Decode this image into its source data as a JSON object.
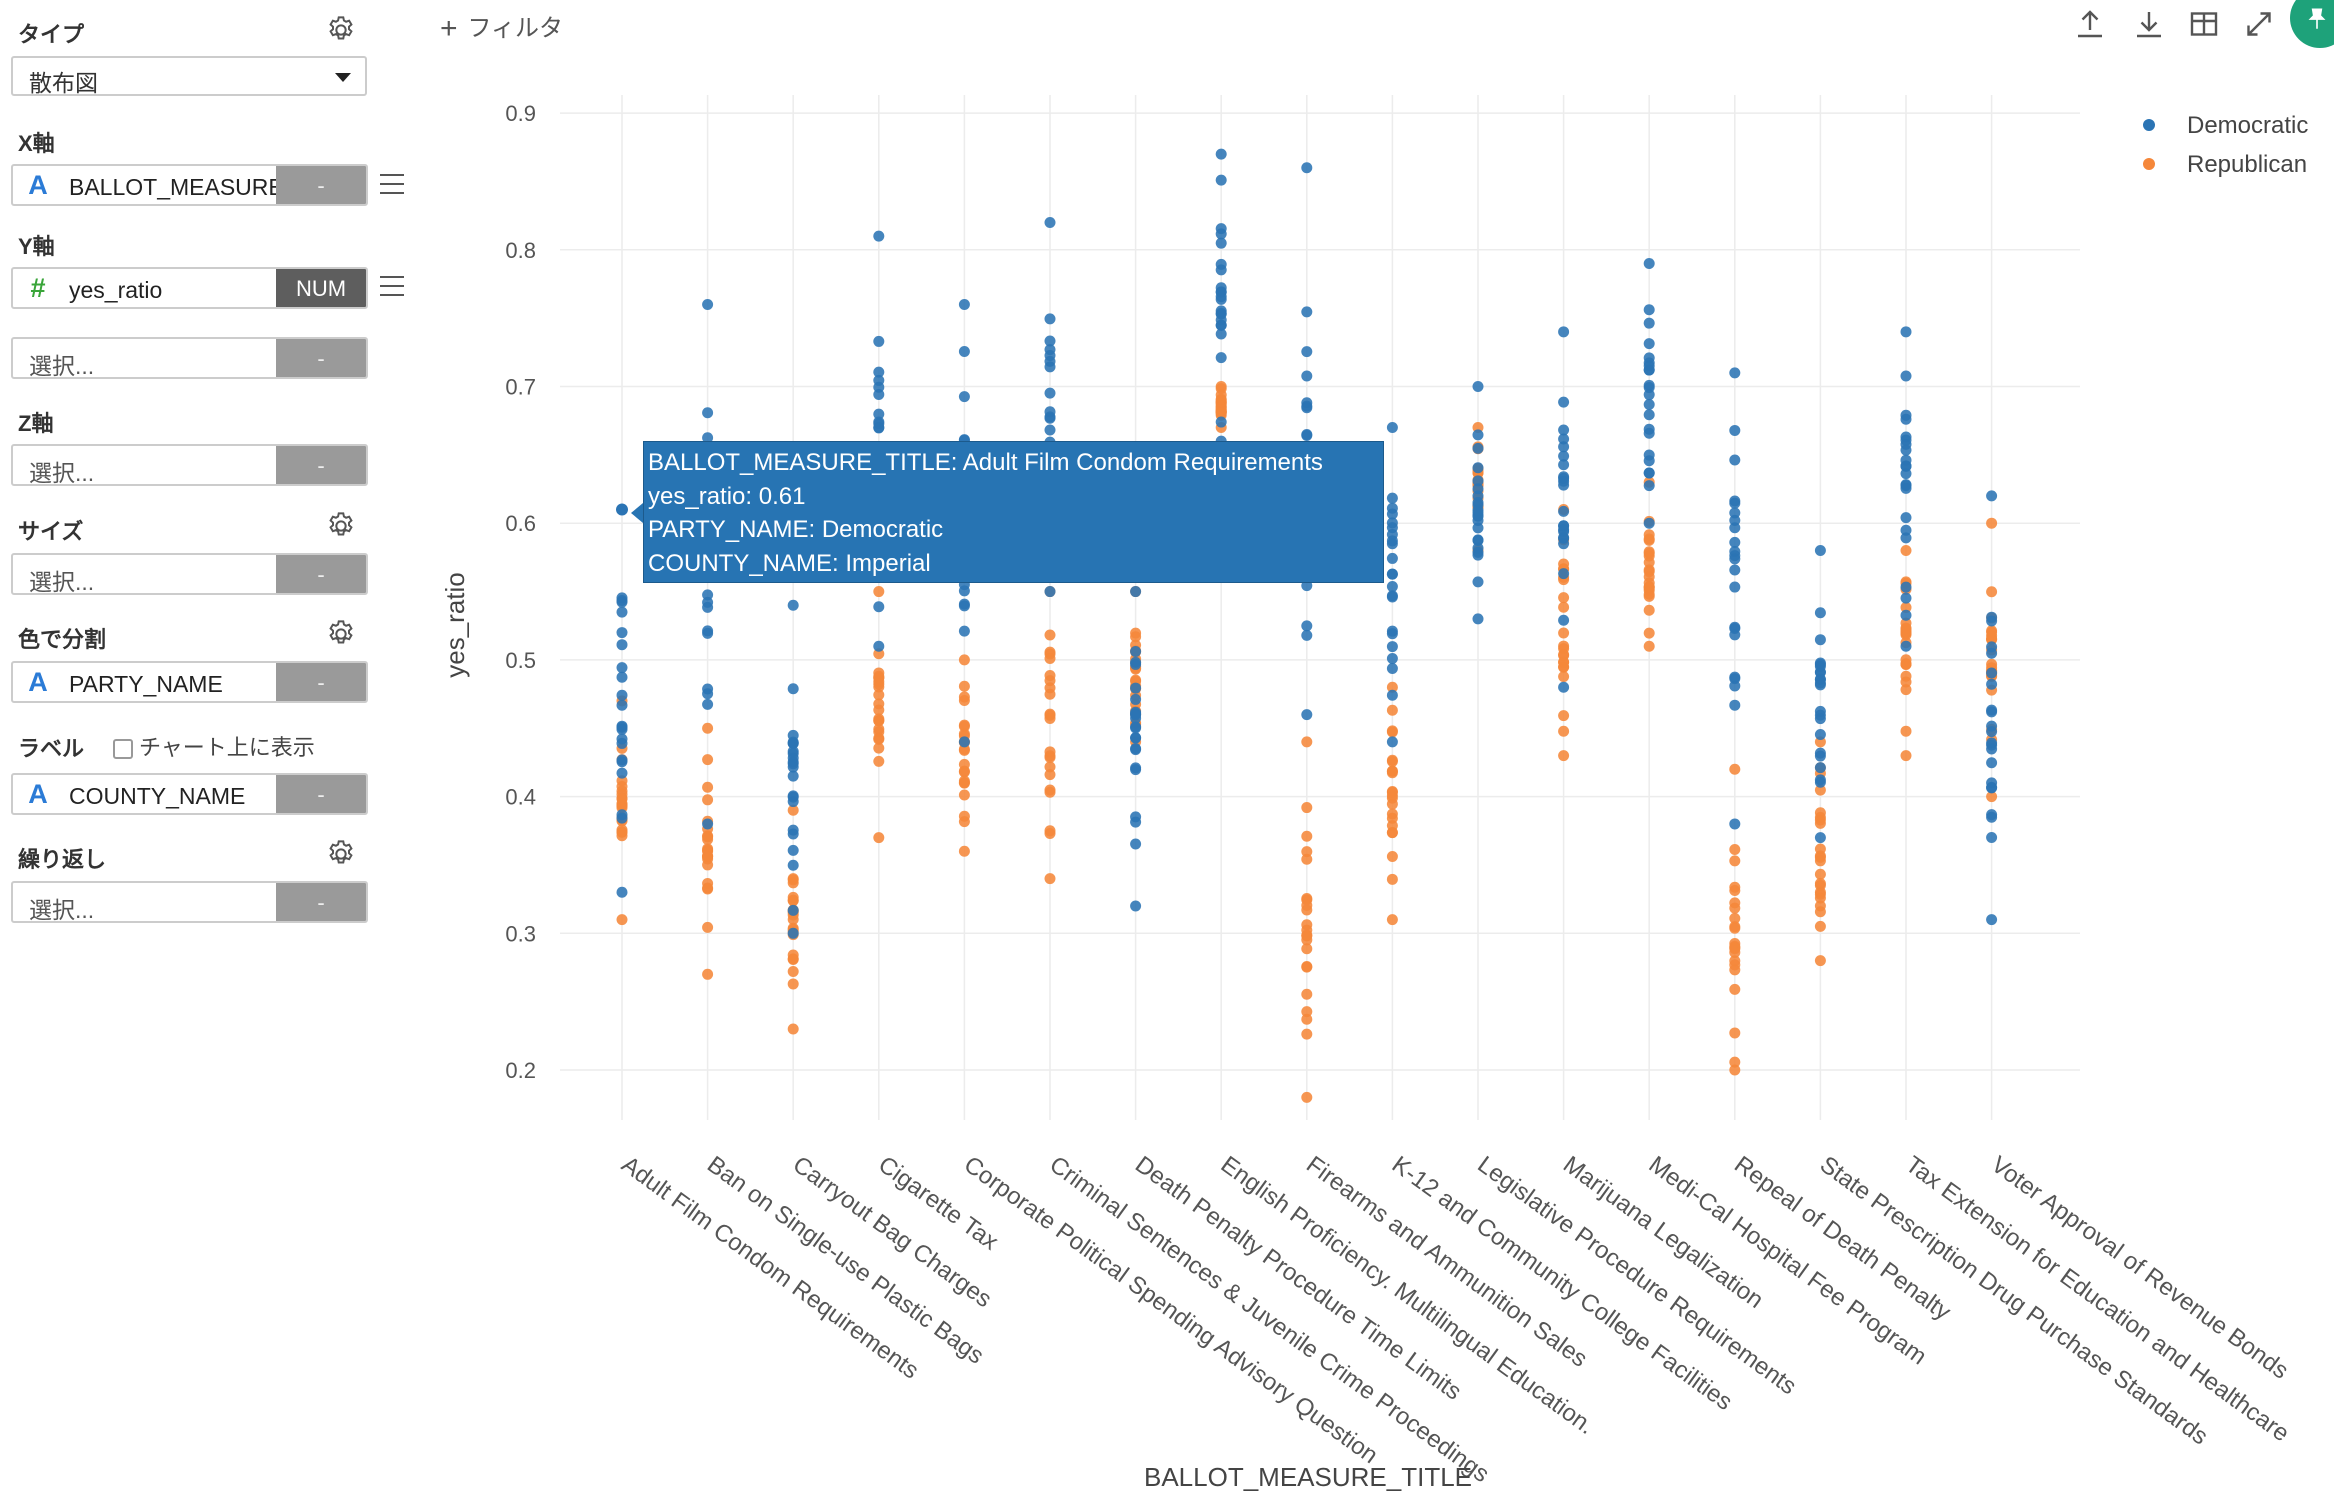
{
  "sidebar": {
    "type_label": "タイプ",
    "type_value": "散布図",
    "x_label": "X軸",
    "x_field": {
      "type_icon": "A",
      "name": "BALLOT_MEASURE_TITLE",
      "button": "-"
    },
    "y_label": "Y軸",
    "y_field": {
      "type_icon": "#",
      "name": "yes_ratio",
      "button": "NUM"
    },
    "y_extra": {
      "placeholder": "選択...",
      "button": "-"
    },
    "z_label": "Z軸",
    "z_field": {
      "placeholder": "選択...",
      "button": "-"
    },
    "size_label": "サイズ",
    "size_field": {
      "placeholder": "選択...",
      "button": "-"
    },
    "color_label": "色で分割",
    "color_field": {
      "type_icon": "A",
      "name": "PARTY_NAME",
      "button": "-"
    },
    "label_label": "ラベル",
    "label_checkbox_text": "チャート上に表示",
    "label_field": {
      "type_icon": "A",
      "name": "COUNTY_NAME",
      "button": "-"
    },
    "repeat_label": "繰り返し",
    "repeat_field": {
      "placeholder": "選択...",
      "button": "-"
    }
  },
  "toolbar": {
    "filter_plus": "+",
    "filter_label": "フィルタ",
    "icons": [
      "upload-icon",
      "download-icon",
      "table-icon",
      "expand-icon",
      "pin-icon"
    ]
  },
  "tooltip": {
    "line1": "BALLOT_MEASURE_TITLE: Adult Film Condom Requirements",
    "line2": "yes_ratio: 0.61",
    "line3": "PARTY_NAME: Democratic",
    "line4": "COUNTY_NAME: Imperial"
  },
  "chart_data": {
    "type": "scatter",
    "xlabel": "BALLOT_MEASURE_TITLE",
    "ylabel": "yes_ratio",
    "ylim": [
      0.15,
      0.95
    ],
    "yticks": [
      0.2,
      0.3,
      0.4,
      0.5,
      0.6,
      0.7,
      0.8,
      0.9
    ],
    "grid": true,
    "legend_position": "top-right",
    "colors": {
      "Democratic": "#2b74b4",
      "Republican": "#f5873a"
    },
    "categories": [
      "Adult Film Condom Requirements",
      "Ban on Single-use Plastic Bags",
      "Carryout Bag Charges",
      "Cigarette Tax",
      "Corporate Political Spending Advisory Question",
      "Criminal Sentences & Juvenile Crime Proceedings",
      "Death Penalty Procedure Time Limits",
      "English Proficiency. Multilingual Education.",
      "Firearms and Ammunition Sales",
      "K-12 and Community College Facilities",
      "Legislative Procedure Requirements",
      "Marijuana Legalization",
      "Medi-Cal Hospital Fee Program",
      "Repeal of Death Penalty",
      "State Prescription Drug Purchase Standards",
      "Tax Extension for Education and Healthcare",
      "Voter Approval of Revenue Bonds"
    ],
    "series": [
      {
        "name": "Democratic",
        "ranges": [
          [
            0.33,
            0.61
          ],
          [
            0.38,
            0.76
          ],
          [
            0.3,
            0.54
          ],
          [
            0.51,
            0.81
          ],
          [
            0.44,
            0.76
          ],
          [
            0.55,
            0.82
          ],
          [
            0.32,
            0.55
          ],
          [
            0.66,
            0.87
          ],
          [
            0.46,
            0.86
          ],
          [
            0.44,
            0.67
          ],
          [
            0.53,
            0.7
          ],
          [
            0.48,
            0.74
          ],
          [
            0.6,
            0.79
          ],
          [
            0.38,
            0.71
          ],
          [
            0.37,
            0.58
          ],
          [
            0.51,
            0.74
          ],
          [
            0.31,
            0.62
          ]
        ]
      },
      {
        "name": "Republican",
        "ranges": [
          [
            0.31,
            0.47
          ],
          [
            0.27,
            0.45
          ],
          [
            0.23,
            0.39
          ],
          [
            0.37,
            0.55
          ],
          [
            0.36,
            0.5
          ],
          [
            0.34,
            0.55
          ],
          [
            0.44,
            0.55
          ],
          [
            0.67,
            0.7
          ],
          [
            0.18,
            0.44
          ],
          [
            0.31,
            0.48
          ],
          [
            0.58,
            0.67
          ],
          [
            0.43,
            0.61
          ],
          [
            0.51,
            0.63
          ],
          [
            0.2,
            0.42
          ],
          [
            0.28,
            0.44
          ],
          [
            0.43,
            0.58
          ],
          [
            0.4,
            0.6
          ]
        ]
      }
    ],
    "highlight_point": {
      "category": "Adult Film Condom Requirements",
      "series": "Democratic",
      "y": 0.61
    }
  }
}
